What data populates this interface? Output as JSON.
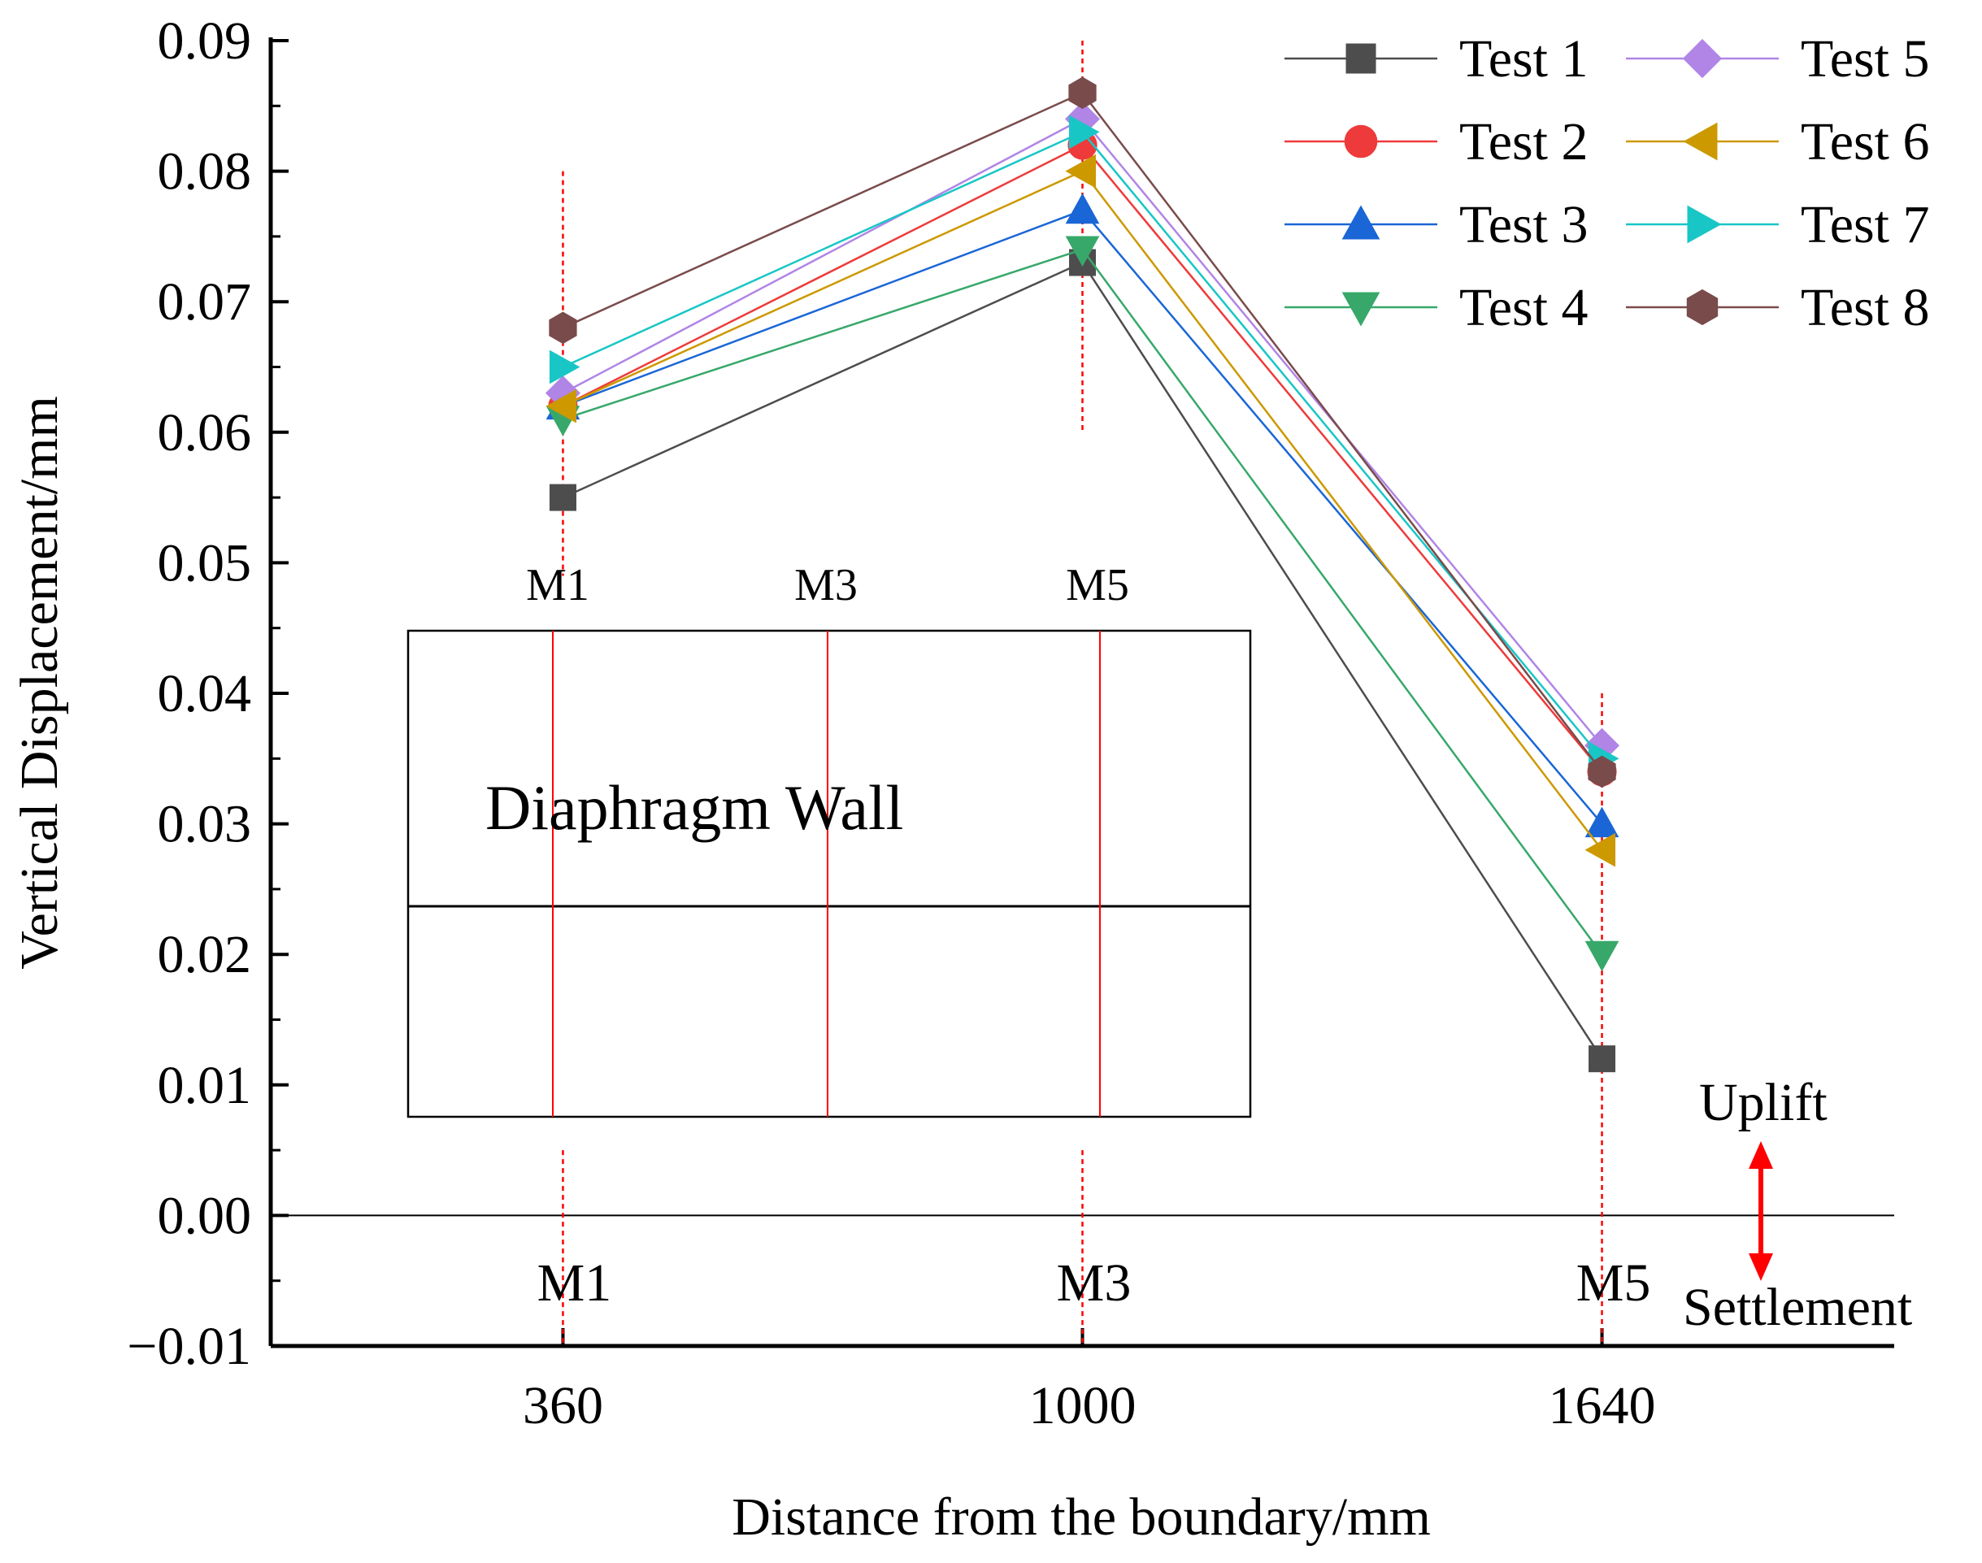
{
  "chart_data": {
    "type": "line",
    "title": "",
    "xlabel": "Distance from the boundary/mm",
    "ylabel": "Vertical Displacement/mm",
    "x": [
      360,
      1000,
      1640
    ],
    "x_tick_labels": [
      "360",
      "1000",
      "1640"
    ],
    "xlim": [
      0,
      2000
    ],
    "ylim": [
      -0.01,
      0.09
    ],
    "y_ticks": [
      -0.01,
      0.0,
      0.01,
      0.02,
      0.03,
      0.04,
      0.05,
      0.06,
      0.07,
      0.08,
      0.09
    ],
    "y_tick_labels": [
      "−0.01",
      "0.00",
      "0.01",
      "0.02",
      "0.03",
      "0.04",
      "0.05",
      "0.06",
      "0.07",
      "0.08",
      "0.09"
    ],
    "grid": false,
    "legend_position": "top-right",
    "series": [
      {
        "name": "Test 1",
        "values": [
          0.055,
          0.073,
          0.012
        ],
        "color": "#4d4d4d",
        "marker": "square"
      },
      {
        "name": "Test 2",
        "values": [
          0.062,
          0.082,
          0.034
        ],
        "color": "#ee3a3a",
        "marker": "circle"
      },
      {
        "name": "Test 3",
        "values": [
          0.062,
          0.077,
          0.03
        ],
        "color": "#1a66d6",
        "marker": "triangle-up"
      },
      {
        "name": "Test 4",
        "values": [
          0.061,
          0.074,
          0.02
        ],
        "color": "#37a86a",
        "marker": "triangle-down"
      },
      {
        "name": "Test 5",
        "values": [
          0.063,
          0.084,
          0.036
        ],
        "color": "#b085e6",
        "marker": "diamond"
      },
      {
        "name": "Test 6",
        "values": [
          0.062,
          0.08,
          0.028
        ],
        "color": "#cc9900",
        "marker": "triangle-left"
      },
      {
        "name": "Test 7",
        "values": [
          0.065,
          0.083,
          0.035
        ],
        "color": "#19c6c6",
        "marker": "triangle-right"
      },
      {
        "name": "Test 8",
        "values": [
          0.068,
          0.086,
          0.034
        ],
        "color": "#7a4b4b",
        "marker": "hexagon"
      }
    ],
    "point_labels": [
      "M1",
      "M3",
      "M5"
    ],
    "annotations": {
      "uplift": "Uplift",
      "settlement": "Settlement",
      "arrow_color": "#ff0000"
    },
    "inset": {
      "title": "Diaphragm Wall",
      "labels": [
        "M1",
        "M3",
        "M5"
      ],
      "line_color": "#ff0000"
    }
  }
}
